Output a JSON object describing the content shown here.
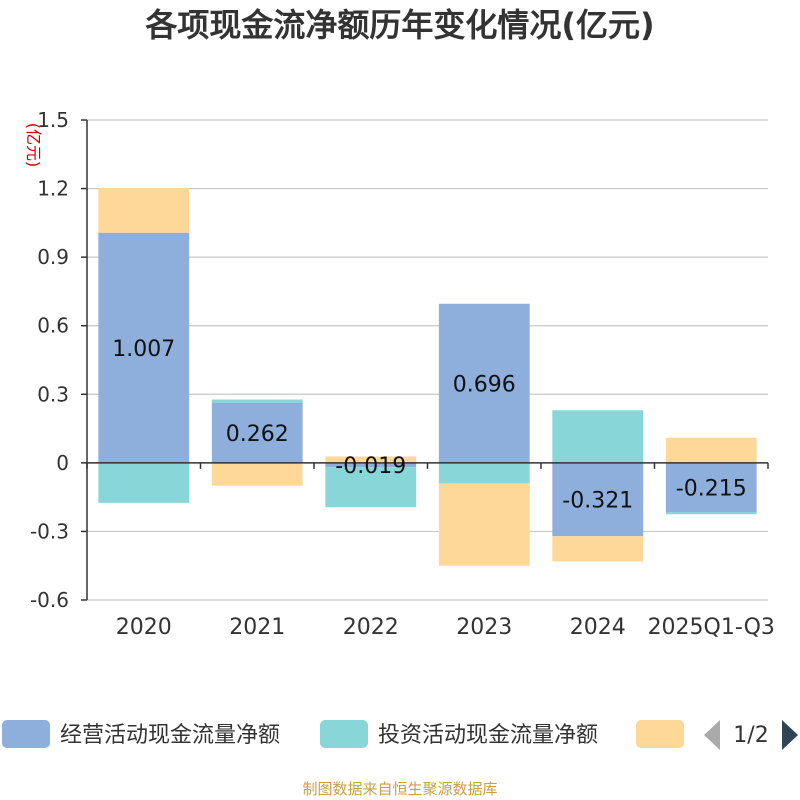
{
  "chart_data": {
    "type": "bar",
    "stacked": true,
    "title": "各项现金流净额历年变化情况(亿元)",
    "ylabel": "(亿元)",
    "ylim": [
      -0.6,
      1.5
    ],
    "yticks": [
      1.5,
      1.2,
      0.9,
      0.6,
      0.3,
      0,
      -0.3,
      -0.6
    ],
    "ytick_labels": [
      "1.5",
      "1.2",
      "0.9",
      "0.6",
      "0.3",
      "0",
      "-0.3",
      "-0.6"
    ],
    "categories": [
      "2020",
      "2021",
      "2022",
      "2023",
      "2024",
      "2025Q1-Q3"
    ],
    "series": [
      {
        "name": "经营活动现金流量净额",
        "color": "#8eaedb",
        "values": [
          1.007,
          0.262,
          -0.019,
          0.696,
          -0.321,
          -0.215
        ],
        "labels": [
          "1.007",
          "0.262",
          "-0.019",
          "0.696",
          "-0.321",
          "-0.215"
        ]
      },
      {
        "name": "投资活动现金流量净额",
        "color": "#88d6d8",
        "values": [
          -0.175,
          0.015,
          -0.175,
          -0.09,
          0.23,
          -0.01
        ]
      },
      {
        "name": "",
        "color": "#fed898",
        "values": [
          0.195,
          -0.1,
          0.028,
          -0.36,
          -0.11,
          0.11
        ]
      }
    ],
    "legend": {
      "position": "bottom",
      "visible_entries": [
        "经营活动现金流量净额",
        "投资活动现金流量净额",
        ""
      ],
      "page": "1/2"
    },
    "grid": true
  },
  "footer": {
    "source": "制图数据来自恒生聚源数据库"
  },
  "colors": {
    "arrow_inactive": "#aaaaaa",
    "arrow_active": "#2f4554"
  }
}
